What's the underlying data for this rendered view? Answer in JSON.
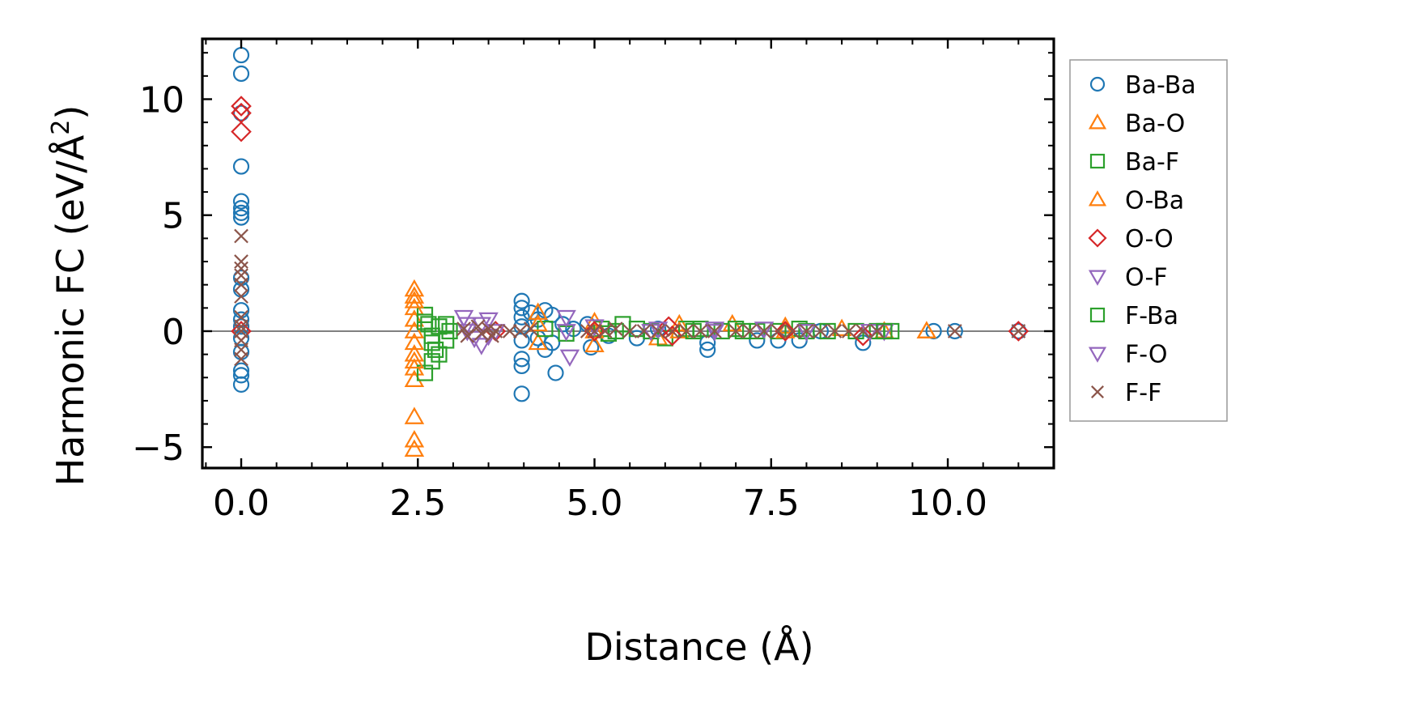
{
  "chart_data": {
    "type": "scatter",
    "title": "",
    "xlabel": "Distance (Å)",
    "ylabel_main": "Harmonic FC (eV/Å",
    "ylabel_sup": "2",
    "ylabel_close": ")",
    "xlim": [
      -0.55,
      11.5
    ],
    "ylim": [
      -5.9,
      12.6
    ],
    "xticks": [
      0.0,
      2.5,
      5.0,
      7.5,
      10.0
    ],
    "xtick_labels": [
      "0.0",
      "2.5",
      "5.0",
      "7.5",
      "10.0"
    ],
    "yticks": [
      -5,
      0,
      5,
      10
    ],
    "ytick_labels": [
      "−5",
      "0",
      "5",
      "10"
    ],
    "legend_position": "outside-right",
    "series": [
      {
        "name": "Ba-Ba",
        "marker": "circle",
        "color": "#1f77b4",
        "points": [
          [
            0,
            11.9
          ],
          [
            0,
            11.1
          ],
          [
            0,
            9.4
          ],
          [
            0,
            7.1
          ],
          [
            0,
            5.6
          ],
          [
            0,
            5.3
          ],
          [
            0,
            5.1
          ],
          [
            0,
            4.9
          ],
          [
            0,
            2.3
          ],
          [
            0,
            1.8
          ],
          [
            0,
            0.9
          ],
          [
            0,
            0.5
          ],
          [
            0,
            0.2
          ],
          [
            0,
            -0.3
          ],
          [
            0,
            -0.9
          ],
          [
            0,
            -1.7
          ],
          [
            0,
            -1.9
          ],
          [
            0,
            -2.3
          ],
          [
            3.97,
            1.3
          ],
          [
            3.97,
            1.0
          ],
          [
            3.97,
            0.6
          ],
          [
            3.97,
            0.2
          ],
          [
            3.97,
            -0.4
          ],
          [
            3.97,
            -1.2
          ],
          [
            3.97,
            -1.5
          ],
          [
            3.97,
            -2.7
          ],
          [
            4.1,
            0.8
          ],
          [
            4.2,
            0.5
          ],
          [
            4.3,
            0.9
          ],
          [
            4.4,
            0.7
          ],
          [
            4.4,
            -0.5
          ],
          [
            4.45,
            -1.8
          ],
          [
            4.3,
            -0.8
          ],
          [
            4.2,
            -0.3
          ],
          [
            4.55,
            0.3
          ],
          [
            4.7,
            0.1
          ],
          [
            4.9,
            0.3
          ],
          [
            4.95,
            -0.7
          ],
          [
            5.2,
            -0.2
          ],
          [
            5.6,
            -0.3
          ],
          [
            5.9,
            0.1
          ],
          [
            6.6,
            -0.8
          ],
          [
            6.6,
            -0.5
          ],
          [
            7.3,
            -0.4
          ],
          [
            7.6,
            -0.4
          ],
          [
            7.9,
            -0.4
          ],
          [
            8.2,
            0.0
          ],
          [
            8.8,
            -0.5
          ],
          [
            9.8,
            0.0
          ],
          [
            10.1,
            0.0
          ],
          [
            11.0,
            0.0
          ]
        ]
      },
      {
        "name": "Ba-O",
        "marker": "triangle-up",
        "color": "#ff7f0e",
        "points": [
          [
            2.45,
            1.8
          ],
          [
            2.45,
            1.5
          ],
          [
            2.45,
            1.0
          ],
          [
            2.45,
            0.5
          ],
          [
            2.45,
            -0.5
          ],
          [
            2.45,
            -1.0
          ],
          [
            2.45,
            -1.6
          ],
          [
            2.45,
            -2.1
          ],
          [
            2.45,
            -3.7
          ],
          [
            2.45,
            -4.7
          ],
          [
            2.45,
            -5.1
          ],
          [
            4.2,
            0.8
          ],
          [
            4.2,
            -0.5
          ],
          [
            5.0,
            0.4
          ],
          [
            5.0,
            -0.6
          ],
          [
            5.9,
            -0.3
          ],
          [
            6.2,
            0.3
          ],
          [
            6.95,
            0.3
          ],
          [
            7.7,
            0.2
          ],
          [
            8.5,
            0.1
          ],
          [
            9.1,
            0.0
          ],
          [
            9.7,
            0.0
          ]
        ]
      },
      {
        "name": "Ba-F",
        "marker": "square",
        "color": "#2ca02c",
        "points": [
          [
            2.6,
            0.7
          ],
          [
            2.65,
            0.3
          ],
          [
            2.7,
            -0.2
          ],
          [
            2.75,
            -0.8
          ],
          [
            2.7,
            -1.3
          ],
          [
            2.6,
            -1.8
          ],
          [
            2.8,
            0.2
          ],
          [
            2.9,
            -0.4
          ],
          [
            2.95,
            0.0
          ],
          [
            4.3,
            0.1
          ],
          [
            4.6,
            -0.1
          ],
          [
            5.1,
            0.1
          ],
          [
            5.2,
            -0.1
          ],
          [
            5.4,
            0.3
          ],
          [
            5.6,
            0.1
          ],
          [
            5.8,
            0.0
          ],
          [
            6.0,
            -0.3
          ],
          [
            6.3,
            0.1
          ],
          [
            6.5,
            0.1
          ],
          [
            6.8,
            0.0
          ],
          [
            7.0,
            0.1
          ],
          [
            7.3,
            0.0
          ],
          [
            7.6,
            0.0
          ],
          [
            7.9,
            0.1
          ],
          [
            8.3,
            0.0
          ],
          [
            8.7,
            0.0
          ],
          [
            9.0,
            0.0
          ],
          [
            9.2,
            0.0
          ]
        ]
      },
      {
        "name": "O-Ba",
        "marker": "triangle-up",
        "color": "#ff7f0e",
        "points": [
          [
            2.45,
            1.3
          ],
          [
            2.45,
            0.0
          ],
          [
            2.45,
            -1.3
          ],
          [
            4.2,
            0.3
          ],
          [
            5.0,
            0.0
          ],
          [
            6.2,
            0.0
          ],
          [
            7.7,
            0.0
          ],
          [
            9.7,
            0.0
          ]
        ]
      },
      {
        "name": "O-O",
        "marker": "diamond",
        "color": "#d62728",
        "points": [
          [
            0,
            9.7
          ],
          [
            0,
            9.4
          ],
          [
            0,
            8.6
          ],
          [
            0,
            0.0
          ],
          [
            3.6,
            0.0
          ],
          [
            5.0,
            0.0
          ],
          [
            6.05,
            0.2
          ],
          [
            6.1,
            -0.2
          ],
          [
            7.7,
            0.0
          ],
          [
            8.8,
            -0.2
          ],
          [
            11.0,
            0.0
          ]
        ]
      },
      {
        "name": "O-F",
        "marker": "triangle-down",
        "color": "#9467bd",
        "points": [
          [
            3.15,
            0.6
          ],
          [
            3.2,
            0.3
          ],
          [
            3.3,
            -0.3
          ],
          [
            3.4,
            -0.6
          ],
          [
            3.5,
            0.5
          ],
          [
            3.6,
            0.0
          ],
          [
            4.6,
            0.6
          ],
          [
            4.65,
            -1.1
          ],
          [
            5.0,
            0.2
          ],
          [
            5.9,
            0.1
          ],
          [
            6.7,
            0.0
          ],
          [
            7.4,
            0.1
          ],
          [
            8.0,
            0.0
          ],
          [
            8.9,
            0.0
          ],
          [
            9.1,
            0.0
          ]
        ]
      },
      {
        "name": "F-Ba",
        "marker": "square",
        "color": "#2ca02c",
        "points": [
          [
            2.6,
            0.4
          ],
          [
            2.7,
            -0.5
          ],
          [
            2.8,
            -1.0
          ],
          [
            2.9,
            0.3
          ],
          [
            5.3,
            0.0
          ],
          [
            6.4,
            0.0
          ],
          [
            7.1,
            0.0
          ],
          [
            8.0,
            0.0
          ],
          [
            9.1,
            0.0
          ]
        ]
      },
      {
        "name": "F-O",
        "marker": "triangle-down",
        "color": "#9467bd",
        "points": [
          [
            3.2,
            0.0
          ],
          [
            3.4,
            0.3
          ],
          [
            3.5,
            -0.2
          ],
          [
            4.6,
            0.0
          ],
          [
            5.8,
            0.0
          ],
          [
            6.7,
            0.1
          ],
          [
            8.0,
            0.0
          ]
        ]
      },
      {
        "name": "F-F",
        "marker": "x",
        "color": "#8c564b",
        "points": [
          [
            0,
            4.1
          ],
          [
            0,
            3.0
          ],
          [
            0,
            2.7
          ],
          [
            0,
            2.4
          ],
          [
            0,
            2.0
          ],
          [
            0,
            1.5
          ],
          [
            0,
            0.6
          ],
          [
            0,
            0.2
          ],
          [
            0,
            0.0
          ],
          [
            0,
            -0.4
          ],
          [
            0,
            -0.8
          ],
          [
            0,
            -1.2
          ],
          [
            3.15,
            0.1
          ],
          [
            3.2,
            -0.2
          ],
          [
            3.35,
            0.2
          ],
          [
            3.4,
            -0.1
          ],
          [
            3.5,
            0.1
          ],
          [
            3.55,
            -0.2
          ],
          [
            3.6,
            0.0
          ],
          [
            3.8,
            0.0
          ],
          [
            3.95,
            0.0
          ],
          [
            4.1,
            0.1
          ],
          [
            4.9,
            0.0
          ],
          [
            5.0,
            0.0
          ],
          [
            5.15,
            0.0
          ],
          [
            5.3,
            0.1
          ],
          [
            5.5,
            0.0
          ],
          [
            5.7,
            0.0
          ],
          [
            5.9,
            0.0
          ],
          [
            6.1,
            0.0
          ],
          [
            6.3,
            0.0
          ],
          [
            6.5,
            0.0
          ],
          [
            6.7,
            0.0
          ],
          [
            7.0,
            0.0
          ],
          [
            7.2,
            0.0
          ],
          [
            7.4,
            0.0
          ],
          [
            7.6,
            0.0
          ],
          [
            7.8,
            0.0
          ],
          [
            8.0,
            0.0
          ],
          [
            8.2,
            0.0
          ],
          [
            8.4,
            0.0
          ],
          [
            8.6,
            0.0
          ],
          [
            8.8,
            0.0
          ],
          [
            9.0,
            0.0
          ],
          [
            10.1,
            0.0
          ],
          [
            11.0,
            0.0
          ]
        ]
      }
    ]
  }
}
